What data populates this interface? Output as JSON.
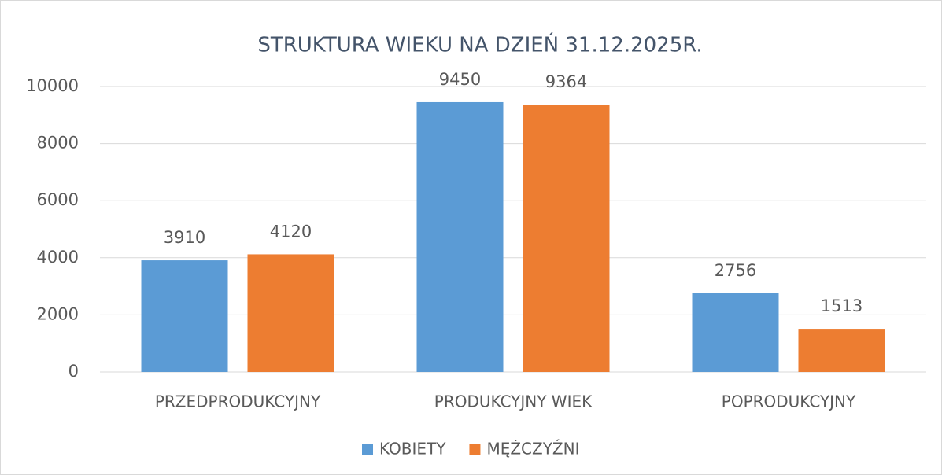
{
  "chart_data": {
    "type": "bar",
    "title": "STRUKTURA WIEKU NA DZIEŃ 31.12.2025R.",
    "categories": [
      "PRZEDPRODUKCYJNY",
      "PRODUKCYJNY WIEK",
      "POPRODUKCYJNY"
    ],
    "series": [
      {
        "name": "KOBIETY",
        "color": "#5b9bd5",
        "values": [
          3910,
          9450,
          2756
        ]
      },
      {
        "name": "MĘŻCZYŹNI",
        "color": "#ed7d31",
        "values": [
          4120,
          9364,
          1513
        ]
      }
    ],
    "ylim": [
      0,
      10000
    ],
    "yticks": [
      0,
      2000,
      4000,
      6000,
      8000,
      10000
    ],
    "grid": true,
    "legend": "bottom"
  }
}
